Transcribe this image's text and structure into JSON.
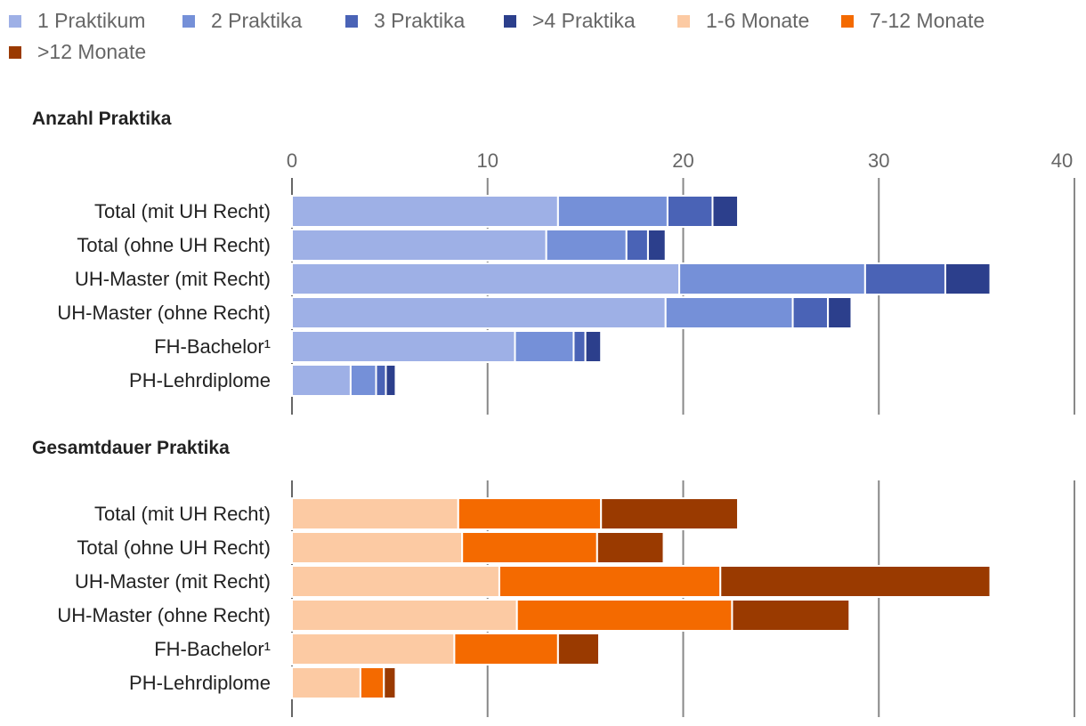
{
  "legend": {
    "items": [
      {
        "label": "1 Praktikum",
        "color": "#9eb0e6"
      },
      {
        "label": "2 Praktika",
        "color": "#7590d8"
      },
      {
        "label": "3 Praktika",
        "color": "#4a63b6"
      },
      {
        "label": ">4 Praktika",
        "color": "#2c3f8c"
      },
      {
        "label": "1-6 Monate",
        "color": "#fccaa3"
      },
      {
        "label": "7-12 Monate",
        "color": "#f46a00"
      },
      {
        "label": ">12 Monate",
        "color": "#9a3a00"
      }
    ]
  },
  "chart_data": [
    {
      "type": "bar",
      "orientation": "horizontal",
      "stacked": true,
      "title": "Anzahl Praktika",
      "categories": [
        "Total (mit UH Recht)",
        "Total (ohne UH Recht)",
        "UH-Master (mit Recht)",
        "UH-Master (ohne Recht)",
        "FH-Bachelor¹",
        "PH-Lehrdiplome"
      ],
      "xlim": [
        0,
        40
      ],
      "xticks": [
        0,
        10,
        20,
        30,
        40
      ],
      "grid": true,
      "series": [
        {
          "name": "1 Praktikum",
          "color": "#9eb0e6",
          "values": [
            13.6,
            13.0,
            19.8,
            19.1,
            11.4,
            3.0
          ]
        },
        {
          "name": "2 Praktika",
          "color": "#7590d8",
          "values": [
            5.6,
            4.1,
            9.5,
            6.5,
            3.0,
            1.3
          ]
        },
        {
          "name": "3 Praktika",
          "color": "#4a63b6",
          "values": [
            2.3,
            1.1,
            4.1,
            1.8,
            0.6,
            0.5
          ]
        },
        {
          "name": ">4 Praktika",
          "color": "#2c3f8c",
          "values": [
            1.3,
            0.9,
            2.3,
            1.2,
            0.8,
            0.5
          ]
        }
      ]
    },
    {
      "type": "bar",
      "orientation": "horizontal",
      "stacked": true,
      "title": "Gesamtdauer Praktika",
      "categories": [
        "Total (mit UH Recht)",
        "Total (ohne UH Recht)",
        "UH-Master (mit Recht)",
        "UH-Master (ohne Recht)",
        "FH-Bachelor¹",
        "PH-Lehrdiplome"
      ],
      "xlim": [
        0,
        40
      ],
      "grid": true,
      "series": [
        {
          "name": "1-6 Monate",
          "color": "#fccaa3",
          "values": [
            8.5,
            8.7,
            10.6,
            11.5,
            8.3,
            3.5
          ]
        },
        {
          "name": "7-12 Monate",
          "color": "#f46a00",
          "values": [
            7.3,
            6.9,
            11.3,
            11.0,
            5.3,
            1.2
          ]
        },
        {
          "name": ">12 Monate",
          "color": "#9a3a00",
          "values": [
            7.0,
            3.4,
            13.8,
            6.0,
            2.1,
            0.6
          ]
        }
      ]
    }
  ]
}
